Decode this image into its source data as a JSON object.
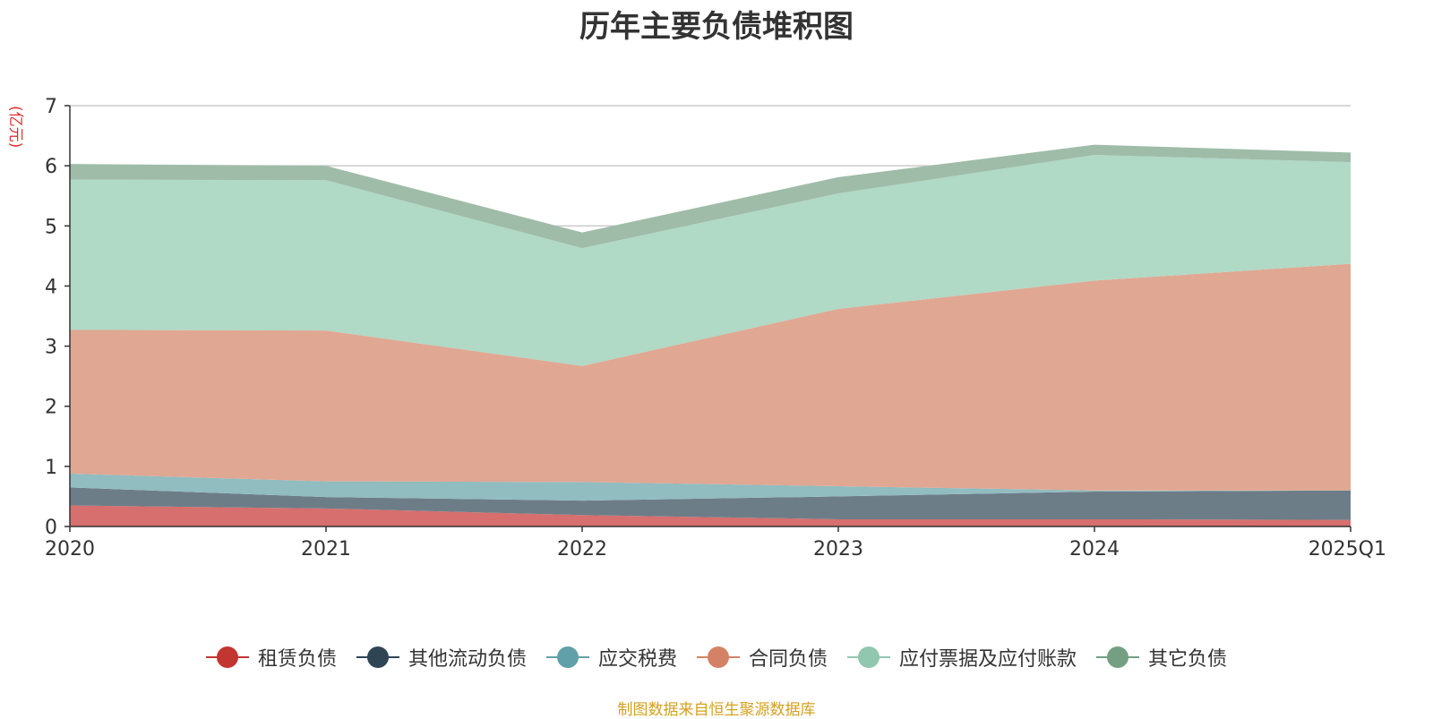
{
  "chart_data": {
    "type": "area",
    "stacked": true,
    "title": "历年主要负债堆积图",
    "unit_label": "(亿元)",
    "categories": [
      "2020",
      "2021",
      "2022",
      "2023",
      "2024",
      "2025Q1"
    ],
    "ylim": [
      0,
      7
    ],
    "yticks": [
      0,
      1,
      2,
      3,
      4,
      5,
      6,
      7
    ],
    "grid": true,
    "legend_position": "bottom",
    "series": [
      {
        "name": "租赁负债",
        "color": "#c23531",
        "fill": "#d66f6d",
        "values": [
          0.35,
          0.3,
          0.19,
          0.12,
          0.12,
          0.11
        ]
      },
      {
        "name": "其他流动负债",
        "color": "#2f4554",
        "fill": "#6d7d88",
        "values": [
          0.3,
          0.19,
          0.24,
          0.38,
          0.46,
          0.49
        ]
      },
      {
        "name": "应交税费",
        "color": "#61a0a8",
        "fill": "#91bcc0",
        "values": [
          0.23,
          0.26,
          0.31,
          0.17,
          0.02,
          0.0
        ]
      },
      {
        "name": "合同负债",
        "color": "#d48265",
        "fill": "#e0a792",
        "values": [
          2.39,
          2.51,
          1.93,
          2.95,
          3.49,
          3.77
        ]
      },
      {
        "name": "应付票据及应付账款",
        "color": "#91c7ae",
        "fill": "#b0d9c6",
        "values": [
          2.5,
          2.5,
          1.96,
          1.92,
          2.09,
          1.69
        ]
      },
      {
        "name": "其它负债",
        "color": "#749f83",
        "fill": "#9fbca8",
        "values": [
          0.26,
          0.24,
          0.26,
          0.27,
          0.17,
          0.16
        ]
      }
    ]
  },
  "source_note": "制图数据来自恒生聚源数据库"
}
